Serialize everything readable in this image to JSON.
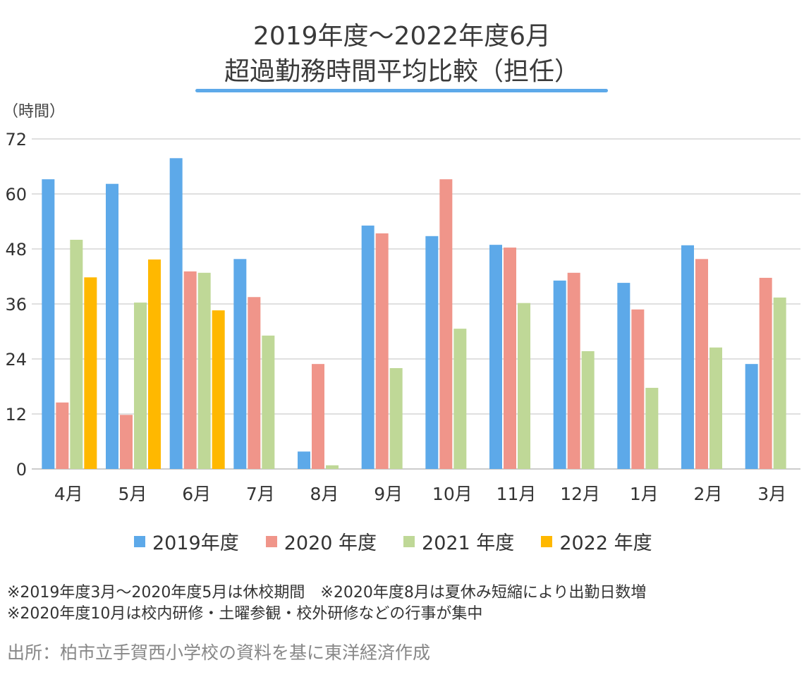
{
  "chart_data": {
    "type": "bar",
    "title": [
      "2019年度～2022年度6月",
      "超過勤務時間平均比較（担任）"
    ],
    "ylabel": "（時間）",
    "xlabel": "",
    "ylim": [
      0,
      72
    ],
    "yticks": [
      0,
      12,
      24,
      36,
      48,
      60,
      72
    ],
    "grid": true,
    "legend_position": "bottom",
    "categories": [
      "4月",
      "5月",
      "6月",
      "7月",
      "8月",
      "9月",
      "10月",
      "11月",
      "12月",
      "1月",
      "2月",
      "3月"
    ],
    "series": [
      {
        "name": "2019年度",
        "color": "#5DA9E9",
        "values": [
          63.2,
          62.2,
          67.8,
          45.8,
          3.8,
          53.1,
          50.8,
          48.9,
          41.1,
          40.6,
          48.8,
          22.9
        ]
      },
      {
        "name": "2020 年度",
        "color": "#F0958A",
        "values": [
          14.5,
          11.8,
          43.1,
          37.5,
          22.9,
          51.4,
          63.2,
          48.3,
          42.8,
          34.8,
          45.8,
          41.7
        ]
      },
      {
        "name": "2021 年度",
        "color": "#BFD897",
        "values": [
          50.0,
          36.3,
          42.8,
          29.1,
          0.8,
          22.0,
          30.6,
          36.2,
          25.7,
          17.7,
          26.5,
          37.4
        ]
      },
      {
        "name": "2022 年度",
        "color": "#FFB800",
        "values": [
          41.8,
          45.7,
          34.6,
          null,
          null,
          null,
          null,
          null,
          null,
          null,
          null,
          null
        ]
      }
    ]
  },
  "notes": [
    "※2019年度3月～2020年度5月は休校期間　※2020年度8月は夏休み短縮により出勤日数増",
    "※2020年度10月は校内研修・土曜参観・校外研修などの行事が集中"
  ],
  "source": "出所：柏市立手賀西小学校の資料を基に東洋経済作成"
}
